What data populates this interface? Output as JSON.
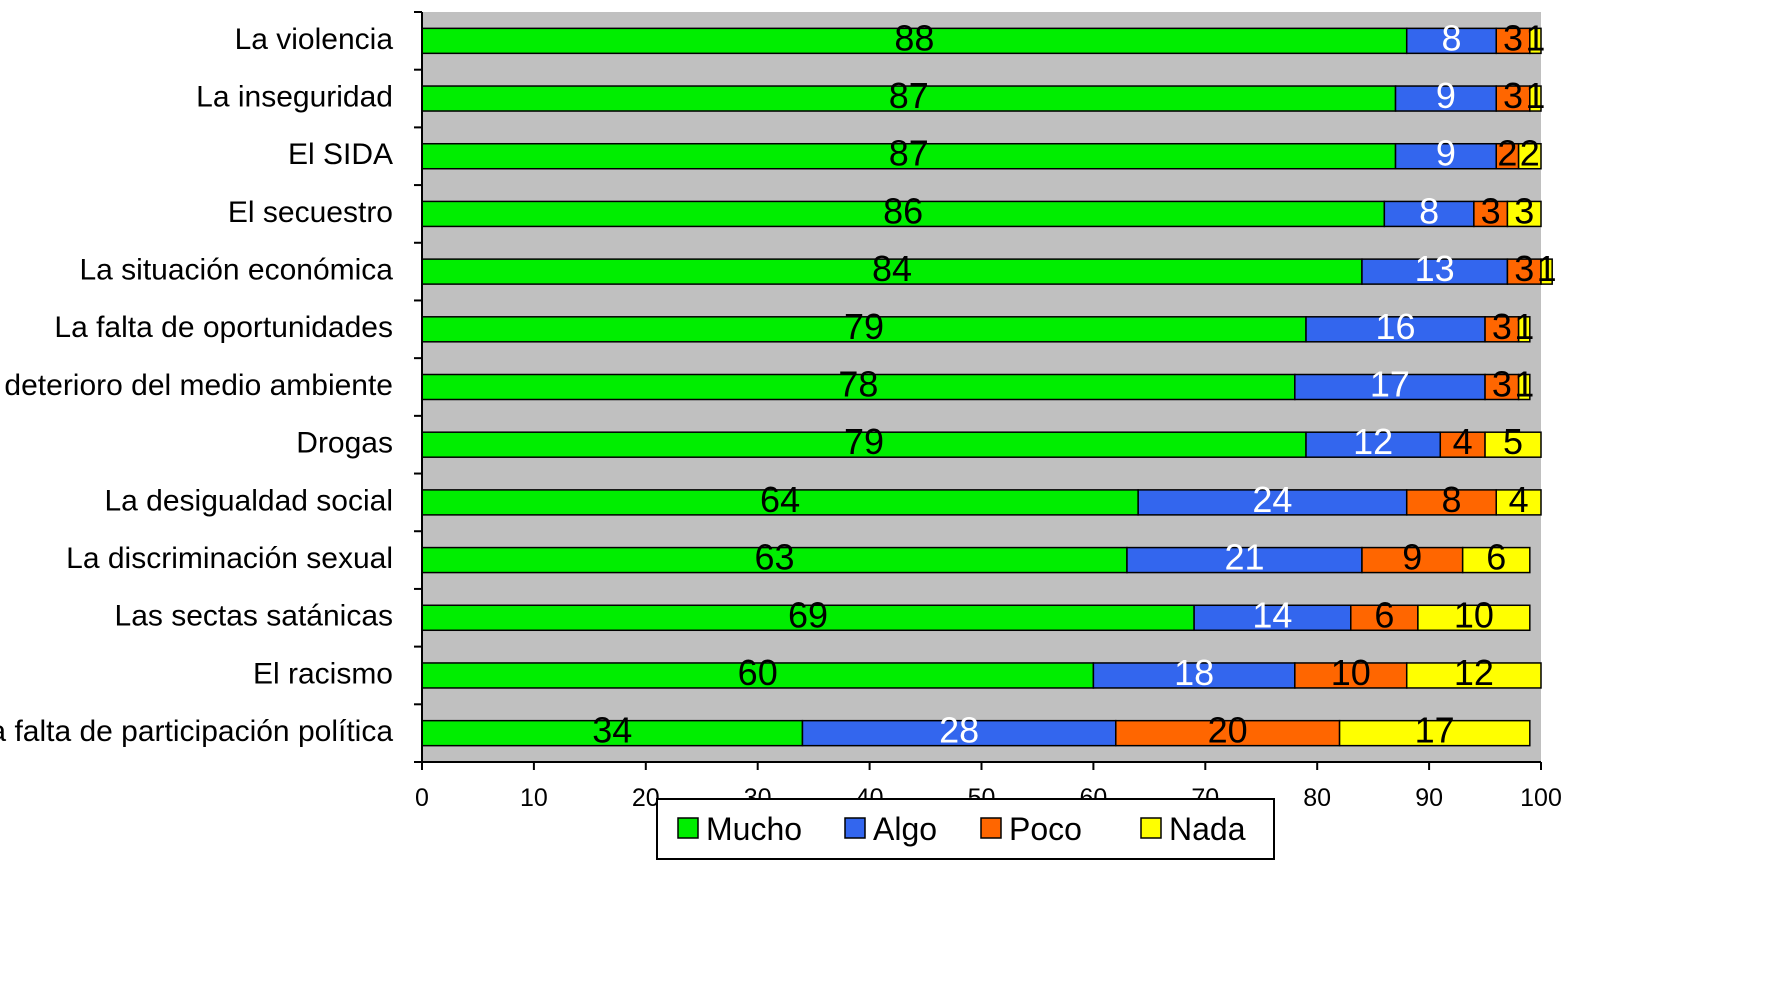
{
  "chart_data": {
    "type": "bar",
    "orientation": "horizontal",
    "stacked": true,
    "categories": [
      "La violencia",
      "La inseguridad",
      "El SIDA",
      "El secuestro",
      "La situación económica",
      "La falta de oportunidades",
      "El deterioro del medio ambiente",
      "Drogas",
      "La desigualdad social",
      "La discriminación sexual",
      "Las sectas satánicas",
      "El racismo",
      "La falta de participación política"
    ],
    "series": [
      {
        "name": "Mucho",
        "color": "#00ee00",
        "label_color": "#000000",
        "values": [
          88,
          87,
          87,
          86,
          84,
          79,
          78,
          79,
          64,
          63,
          69,
          60,
          34
        ]
      },
      {
        "name": "Algo",
        "color": "#3366ee",
        "label_color": "#ffffff",
        "values": [
          8,
          9,
          9,
          8,
          13,
          16,
          17,
          12,
          24,
          21,
          14,
          18,
          28
        ]
      },
      {
        "name": "Poco",
        "color": "#ff6600",
        "label_color": "#000000",
        "values": [
          3,
          3,
          2,
          3,
          3,
          3,
          3,
          4,
          8,
          9,
          6,
          10,
          20
        ]
      },
      {
        "name": "Nada",
        "color": "#ffff00",
        "label_color": "#000000",
        "values": [
          1,
          1,
          2,
          3,
          1,
          1,
          1,
          5,
          4,
          6,
          10,
          12,
          17
        ]
      }
    ],
    "xlim": [
      0,
      100
    ],
    "xticks": [
      "0",
      "10",
      "20",
      "30",
      "40",
      "50",
      "60",
      "70",
      "80",
      "90",
      "100"
    ],
    "plot_background": "#c0c0c0",
    "grid": false,
    "legend_position": "bottom"
  }
}
